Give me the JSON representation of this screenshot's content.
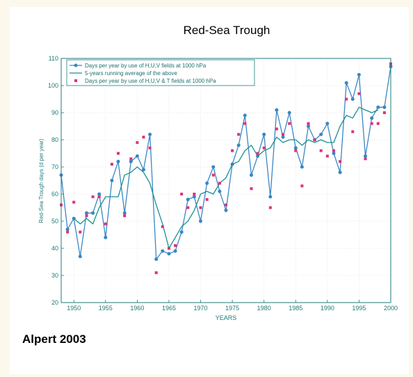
{
  "chart_data": {
    "type": "line",
    "title": "Red-Sea Trough",
    "xlabel": "YEARS",
    "ylabel": "Red-Sea Trough days (d per year)",
    "xlim": [
      1948,
      2000
    ],
    "ylim": [
      20,
      110
    ],
    "xticks": [
      1950,
      1955,
      1960,
      1965,
      1970,
      1975,
      1980,
      1985,
      1990,
      1995,
      2000
    ],
    "yticks": [
      20,
      30,
      40,
      50,
      60,
      70,
      80,
      90,
      100,
      110
    ],
    "grid": true,
    "legend_position": "top-left",
    "colors": {
      "series1": "#3a86c4",
      "series2": "#1a8f8f",
      "series3": "#e0307a",
      "axis": "#1f7a7a"
    },
    "series": [
      {
        "name": "Days per year by use of H,U,V fields at 1000 hPa",
        "style": "line-markers",
        "x": [
          1948,
          1949,
          1950,
          1951,
          1952,
          1953,
          1954,
          1955,
          1956,
          1957,
          1958,
          1959,
          1960,
          1961,
          1962,
          1963,
          1964,
          1965,
          1966,
          1967,
          1968,
          1969,
          1970,
          1971,
          1972,
          1973,
          1974,
          1975,
          1976,
          1977,
          1978,
          1979,
          1980,
          1981,
          1982,
          1983,
          1984,
          1985,
          1986,
          1987,
          1988,
          1989,
          1990,
          1991,
          1992,
          1993,
          1994,
          1995,
          1996,
          1997,
          1998,
          1999,
          2000
        ],
        "y": [
          67,
          47,
          51,
          37,
          53,
          53,
          60,
          44,
          65,
          72,
          53,
          72,
          74,
          69,
          82,
          36,
          39,
          38,
          39,
          46,
          58,
          59,
          50,
          64,
          70,
          61,
          54,
          71,
          78,
          89,
          67,
          74,
          82,
          59,
          91,
          81,
          90,
          77,
          70,
          85,
          80,
          82,
          86,
          75,
          68,
          101,
          95,
          104,
          74,
          88,
          92,
          92,
          107
        ]
      },
      {
        "name": "5-years running average of the above",
        "style": "line",
        "x": [
          1950,
          1951,
          1952,
          1953,
          1954,
          1955,
          1956,
          1957,
          1958,
          1959,
          1960,
          1961,
          1962,
          1963,
          1964,
          1965,
          1966,
          1967,
          1968,
          1969,
          1970,
          1971,
          1972,
          1973,
          1974,
          1975,
          1976,
          1977,
          1978,
          1979,
          1980,
          1981,
          1982,
          1983,
          1984,
          1985,
          1986,
          1987,
          1988,
          1989,
          1990,
          1991,
          1992,
          1993,
          1994,
          1995,
          1996,
          1997,
          1998
        ],
        "y": [
          51,
          49,
          51,
          49,
          55,
          59,
          59,
          59,
          67,
          68,
          70,
          68,
          64,
          56,
          49,
          40,
          44,
          48,
          50,
          54,
          60,
          61,
          60,
          64,
          66,
          71,
          72,
          76,
          78,
          74,
          76,
          77,
          81,
          79,
          80,
          80,
          78,
          80,
          79,
          80,
          79,
          79,
          85,
          89,
          88,
          92,
          91,
          90,
          91
        ]
      },
      {
        "name": "Days per year by use of H,U,V & T fields at 1000 hPa",
        "style": "markers",
        "x": [
          1948,
          1949,
          1950,
          1951,
          1952,
          1953,
          1954,
          1955,
          1956,
          1957,
          1958,
          1959,
          1960,
          1961,
          1962,
          1963,
          1964,
          1965,
          1966,
          1967,
          1968,
          1969,
          1970,
          1971,
          1972,
          1973,
          1974,
          1975,
          1976,
          1977,
          1978,
          1979,
          1980,
          1981,
          1982,
          1983,
          1984,
          1985,
          1986,
          1987,
          1988,
          1989,
          1990,
          1991,
          1992,
          1993,
          1994,
          1995,
          1996,
          1997,
          1998,
          1999,
          2000
        ],
        "y": [
          56,
          46,
          57,
          46,
          52,
          59,
          59,
          49,
          71,
          75,
          52,
          73,
          79,
          81,
          77,
          31,
          48,
          40,
          41,
          60,
          55,
          60,
          55,
          58,
          67,
          64,
          56,
          76,
          82,
          86,
          62,
          75,
          77,
          55,
          84,
          82,
          86,
          76,
          63,
          86,
          80,
          76,
          74,
          76,
          72,
          95,
          83,
          97,
          73,
          86,
          86,
          90,
          108
        ]
      }
    ]
  },
  "credit": "Alpert 2003"
}
